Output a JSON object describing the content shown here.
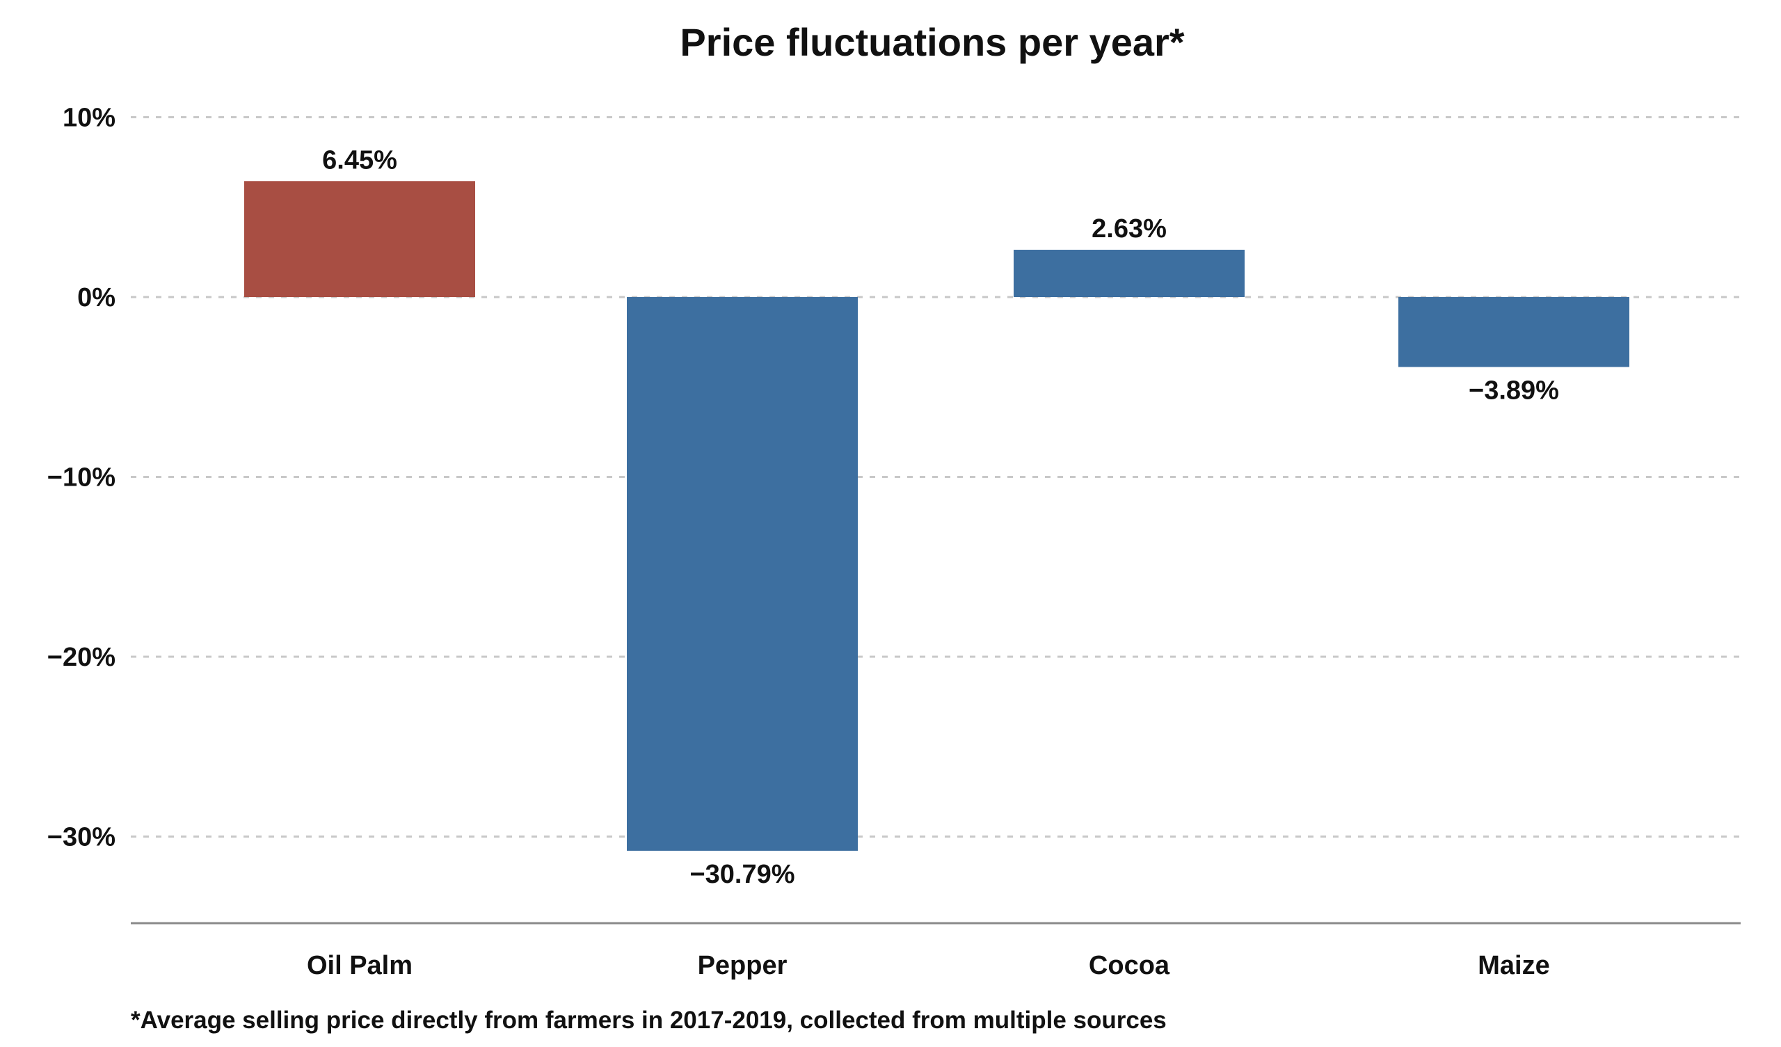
{
  "chart_data": {
    "type": "bar",
    "title": "Price fluctuations per year*",
    "xlabel": "",
    "ylabel": "",
    "categories": [
      "Oil Palm",
      "Pepper",
      "Cocoa",
      "Maize"
    ],
    "values": [
      6.45,
      -30.79,
      2.63,
      -3.89
    ],
    "value_labels": [
      "6.45%",
      "−30.79%",
      "2.63%",
      "−3.89%"
    ],
    "bar_colors": [
      "#a84e43",
      "#3d6fa0",
      "#3d6fa0",
      "#3d6fa0"
    ],
    "ylim": [
      -35,
      10
    ],
    "yticks": [
      10,
      0,
      -10,
      -20,
      -30
    ],
    "ytick_labels": [
      "10%",
      "0%",
      "−10%",
      "−20%",
      "−30%"
    ],
    "grid": true,
    "legend": "none",
    "footnote": "*Average selling price directly from farmers in 2017-2019, collected from multiple sources"
  },
  "colors": {
    "highlight": "#a84e43",
    "default_bar": "#3d6fa0",
    "gridline": "#c8c8c8",
    "axis": "#8a8a8a",
    "text": "#111111"
  }
}
